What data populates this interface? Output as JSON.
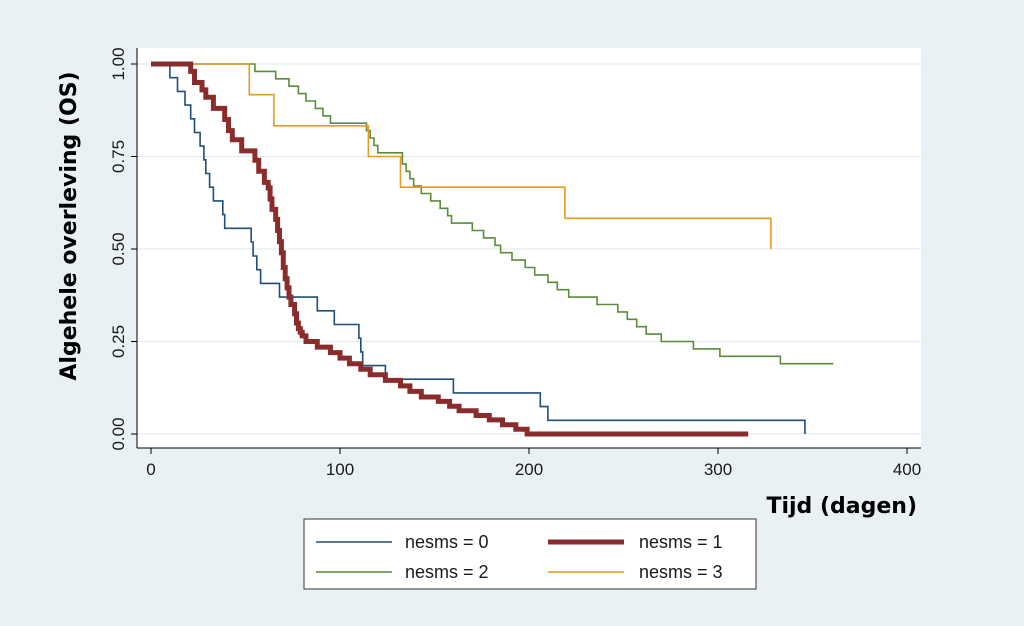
{
  "chart_data": {
    "type": "line",
    "subtype": "kaplan-meier step curves",
    "xlabel": "Tijd (dagen)",
    "ylabel": "Algehele overleving (OS)",
    "xlim": [
      0,
      400
    ],
    "ylim": [
      0,
      1
    ],
    "xticks": [
      0,
      100,
      200,
      300,
      400
    ],
    "yticks": [
      "0.00",
      "0.25",
      "0.50",
      "0.75",
      "1.00"
    ],
    "grid": "horizontal",
    "legend_position": "bottom",
    "series": [
      {
        "name": "nesms = 0",
        "color": "#1f4e79",
        "width": 1.6,
        "points": [
          [
            0,
            1.0
          ],
          [
            10,
            1.0
          ],
          [
            10,
            0.963
          ],
          [
            14,
            0.963
          ],
          [
            14,
            0.926
          ],
          [
            18,
            0.926
          ],
          [
            18,
            0.889
          ],
          [
            21,
            0.889
          ],
          [
            21,
            0.852
          ],
          [
            23,
            0.852
          ],
          [
            23,
            0.815
          ],
          [
            26,
            0.815
          ],
          [
            26,
            0.778
          ],
          [
            28,
            0.778
          ],
          [
            28,
            0.741
          ],
          [
            29,
            0.741
          ],
          [
            29,
            0.704
          ],
          [
            31,
            0.704
          ],
          [
            31,
            0.667
          ],
          [
            33,
            0.667
          ],
          [
            33,
            0.63
          ],
          [
            38,
            0.63
          ],
          [
            38,
            0.593
          ],
          [
            39,
            0.593
          ],
          [
            39,
            0.556
          ],
          [
            53,
            0.556
          ],
          [
            53,
            0.519
          ],
          [
            54,
            0.519
          ],
          [
            54,
            0.481
          ],
          [
            56,
            0.481
          ],
          [
            56,
            0.444
          ],
          [
            58,
            0.444
          ],
          [
            58,
            0.407
          ],
          [
            68,
            0.407
          ],
          [
            68,
            0.37
          ],
          [
            88,
            0.37
          ],
          [
            88,
            0.333
          ],
          [
            97,
            0.333
          ],
          [
            97,
            0.296
          ],
          [
            110,
            0.296
          ],
          [
            110,
            0.259
          ],
          [
            111,
            0.259
          ],
          [
            111,
            0.222
          ],
          [
            112,
            0.222
          ],
          [
            112,
            0.185
          ],
          [
            124,
            0.185
          ],
          [
            124,
            0.148
          ],
          [
            160,
            0.148
          ],
          [
            160,
            0.111
          ],
          [
            206,
            0.111
          ],
          [
            206,
            0.074
          ],
          [
            210,
            0.074
          ],
          [
            210,
            0.037
          ],
          [
            346,
            0.037
          ],
          [
            346,
            0.0
          ]
        ]
      },
      {
        "name": "nesms = 1",
        "color": "#8b2c2c",
        "width": 5,
        "points": [
          [
            0,
            1.0
          ],
          [
            21,
            1.0
          ],
          [
            21,
            0.98
          ],
          [
            23,
            0.98
          ],
          [
            23,
            0.95
          ],
          [
            27,
            0.95
          ],
          [
            27,
            0.93
          ],
          [
            29,
            0.93
          ],
          [
            29,
            0.91
          ],
          [
            33,
            0.91
          ],
          [
            33,
            0.88
          ],
          [
            39,
            0.88
          ],
          [
            39,
            0.85
          ],
          [
            41,
            0.85
          ],
          [
            41,
            0.82
          ],
          [
            43,
            0.82
          ],
          [
            43,
            0.795
          ],
          [
            48,
            0.795
          ],
          [
            48,
            0.765
          ],
          [
            55,
            0.765
          ],
          [
            55,
            0.74
          ],
          [
            57,
            0.74
          ],
          [
            57,
            0.71
          ],
          [
            60,
            0.71
          ],
          [
            60,
            0.68
          ],
          [
            62,
            0.68
          ],
          [
            62,
            0.665
          ],
          [
            63,
            0.665
          ],
          [
            63,
            0.635
          ],
          [
            64,
            0.635
          ],
          [
            64,
            0.607
          ],
          [
            66,
            0.607
          ],
          [
            66,
            0.58
          ],
          [
            67,
            0.58
          ],
          [
            67,
            0.55
          ],
          [
            68,
            0.55
          ],
          [
            68,
            0.52
          ],
          [
            69,
            0.52
          ],
          [
            69,
            0.49
          ],
          [
            70,
            0.49
          ],
          [
            70,
            0.45
          ],
          [
            71,
            0.45
          ],
          [
            71,
            0.42
          ],
          [
            72,
            0.42
          ],
          [
            72,
            0.395
          ],
          [
            73,
            0.395
          ],
          [
            73,
            0.37
          ],
          [
            74,
            0.37
          ],
          [
            74,
            0.35
          ],
          [
            76,
            0.35
          ],
          [
            76,
            0.325
          ],
          [
            77,
            0.325
          ],
          [
            77,
            0.3
          ],
          [
            78,
            0.3
          ],
          [
            78,
            0.285
          ],
          [
            79,
            0.285
          ],
          [
            79,
            0.275
          ],
          [
            80,
            0.275
          ],
          [
            80,
            0.265
          ],
          [
            82,
            0.265
          ],
          [
            82,
            0.25
          ],
          [
            88,
            0.25
          ],
          [
            88,
            0.235
          ],
          [
            95,
            0.235
          ],
          [
            95,
            0.22
          ],
          [
            100,
            0.22
          ],
          [
            100,
            0.205
          ],
          [
            105,
            0.205
          ],
          [
            105,
            0.19
          ],
          [
            111,
            0.19
          ],
          [
            111,
            0.175
          ],
          [
            116,
            0.175
          ],
          [
            116,
            0.16
          ],
          [
            124,
            0.16
          ],
          [
            124,
            0.145
          ],
          [
            132,
            0.145
          ],
          [
            132,
            0.13
          ],
          [
            137,
            0.13
          ],
          [
            137,
            0.115
          ],
          [
            143,
            0.115
          ],
          [
            143,
            0.1
          ],
          [
            152,
            0.1
          ],
          [
            152,
            0.088
          ],
          [
            158,
            0.088
          ],
          [
            158,
            0.075
          ],
          [
            163,
            0.075
          ],
          [
            163,
            0.063
          ],
          [
            172,
            0.063
          ],
          [
            172,
            0.05
          ],
          [
            179,
            0.05
          ],
          [
            179,
            0.038
          ],
          [
            186,
            0.038
          ],
          [
            186,
            0.025
          ],
          [
            193,
            0.025
          ],
          [
            193,
            0.013
          ],
          [
            199,
            0.013
          ],
          [
            199,
            0.0
          ],
          [
            316,
            0.0
          ]
        ]
      },
      {
        "name": "nesms = 2",
        "color": "#5b8c3a",
        "width": 1.6,
        "points": [
          [
            0,
            1.0
          ],
          [
            55,
            1.0
          ],
          [
            55,
            0.98
          ],
          [
            66,
            0.98
          ],
          [
            66,
            0.96
          ],
          [
            73,
            0.96
          ],
          [
            73,
            0.94
          ],
          [
            78,
            0.94
          ],
          [
            78,
            0.92
          ],
          [
            82,
            0.92
          ],
          [
            82,
            0.9
          ],
          [
            87,
            0.9
          ],
          [
            87,
            0.88
          ],
          [
            91,
            0.88
          ],
          [
            91,
            0.86
          ],
          [
            95,
            0.86
          ],
          [
            95,
            0.84
          ],
          [
            114,
            0.84
          ],
          [
            114,
            0.82
          ],
          [
            116,
            0.82
          ],
          [
            116,
            0.8
          ],
          [
            118,
            0.8
          ],
          [
            118,
            0.78
          ],
          [
            120,
            0.78
          ],
          [
            120,
            0.76
          ],
          [
            133,
            0.76
          ],
          [
            133,
            0.73
          ],
          [
            135,
            0.73
          ],
          [
            135,
            0.71
          ],
          [
            137,
            0.71
          ],
          [
            137,
            0.69
          ],
          [
            139,
            0.69
          ],
          [
            139,
            0.67
          ],
          [
            143,
            0.67
          ],
          [
            143,
            0.65
          ],
          [
            148,
            0.65
          ],
          [
            148,
            0.63
          ],
          [
            153,
            0.63
          ],
          [
            153,
            0.61
          ],
          [
            157,
            0.61
          ],
          [
            157,
            0.59
          ],
          [
            159,
            0.59
          ],
          [
            159,
            0.57
          ],
          [
            170,
            0.57
          ],
          [
            170,
            0.55
          ],
          [
            176,
            0.55
          ],
          [
            176,
            0.53
          ],
          [
            182,
            0.53
          ],
          [
            182,
            0.51
          ],
          [
            185,
            0.51
          ],
          [
            185,
            0.49
          ],
          [
            191,
            0.49
          ],
          [
            191,
            0.47
          ],
          [
            198,
            0.47
          ],
          [
            198,
            0.45
          ],
          [
            203,
            0.45
          ],
          [
            203,
            0.43
          ],
          [
            210,
            0.43
          ],
          [
            210,
            0.41
          ],
          [
            215,
            0.41
          ],
          [
            215,
            0.39
          ],
          [
            221,
            0.39
          ],
          [
            221,
            0.37
          ],
          [
            236,
            0.37
          ],
          [
            236,
            0.35
          ],
          [
            247,
            0.35
          ],
          [
            247,
            0.33
          ],
          [
            252,
            0.33
          ],
          [
            252,
            0.31
          ],
          [
            257,
            0.31
          ],
          [
            257,
            0.29
          ],
          [
            262,
            0.29
          ],
          [
            262,
            0.27
          ],
          [
            270,
            0.27
          ],
          [
            270,
            0.25
          ],
          [
            287,
            0.25
          ],
          [
            287,
            0.23
          ],
          [
            301,
            0.23
          ],
          [
            301,
            0.21
          ],
          [
            333,
            0.21
          ],
          [
            333,
            0.19
          ],
          [
            361,
            0.19
          ]
        ]
      },
      {
        "name": "nesms = 3",
        "color": "#e69b23",
        "width": 1.6,
        "points": [
          [
            0,
            1.0
          ],
          [
            52,
            1.0
          ],
          [
            52,
            0.917
          ],
          [
            65,
            0.917
          ],
          [
            65,
            0.833
          ],
          [
            115,
            0.833
          ],
          [
            115,
            0.75
          ],
          [
            132,
            0.75
          ],
          [
            132,
            0.667
          ],
          [
            219,
            0.667
          ],
          [
            219,
            0.583
          ],
          [
            328,
            0.583
          ],
          [
            328,
            0.5
          ]
        ]
      }
    ]
  }
}
